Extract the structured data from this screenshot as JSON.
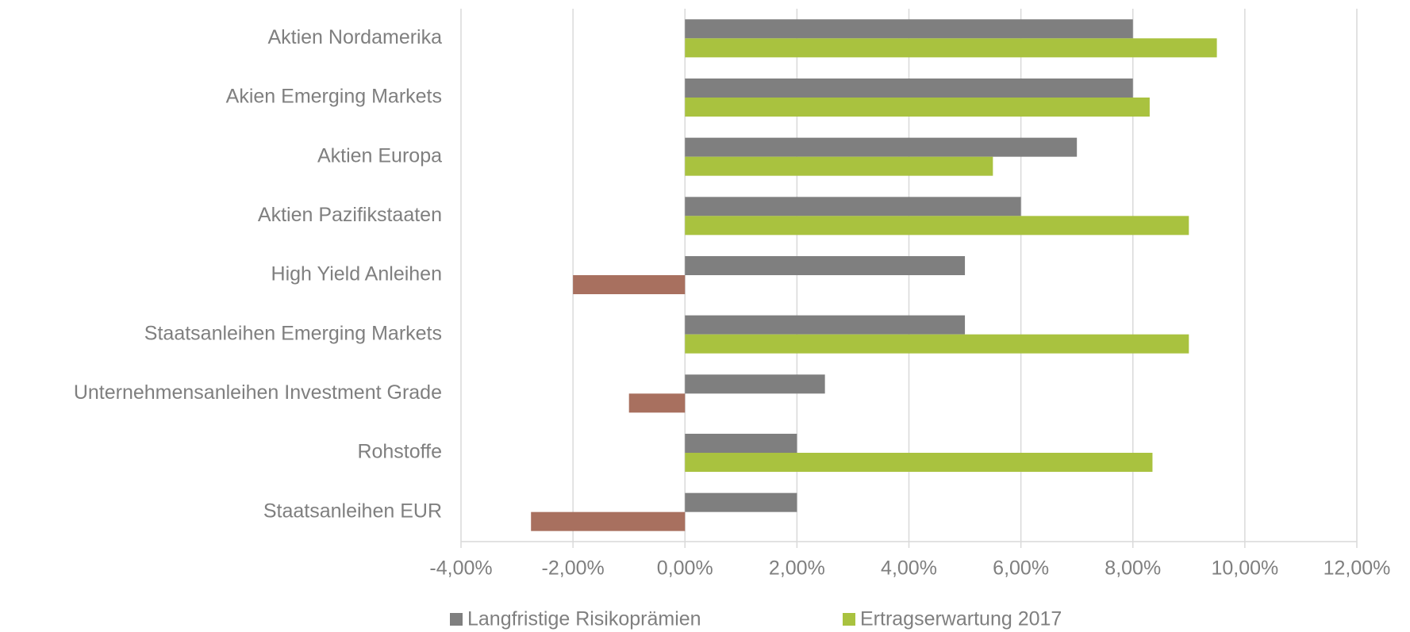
{
  "chart_data": {
    "type": "barh",
    "categories": [
      "Aktien Nordamerika",
      "Akien Emerging Markets",
      "Aktien Europa",
      "Aktien Pazifikstaaten",
      "High Yield Anleihen",
      "Staatsanleihen Emerging Markets",
      "Unternehmensanleihen Investment Grade",
      "Rohstoffe",
      "Staatsanleihen EUR"
    ],
    "series": [
      {
        "name": "Langfristige Risikoprämien",
        "color": "#7f7f7f",
        "values": [
          8,
          8,
          7,
          6,
          5,
          5,
          2.5,
          2,
          2
        ]
      },
      {
        "name": "Ertragserwartung 2017",
        "color": "#a9c23f",
        "negative_color": "#a8705f",
        "values": [
          9.5,
          8.3,
          5.5,
          9,
          -2,
          9,
          -1,
          8.35,
          -2.75
        ]
      }
    ],
    "xlim": [
      -4,
      12
    ],
    "xticks": [
      {
        "value": -4,
        "label": "-4,00%"
      },
      {
        "value": -2,
        "label": "-2,00%"
      },
      {
        "value": 0,
        "label": "0,00%"
      },
      {
        "value": 2,
        "label": "2,00%"
      },
      {
        "value": 4,
        "label": "4,00%"
      },
      {
        "value": 6,
        "label": "6,00%"
      },
      {
        "value": 8,
        "label": "8,00%"
      },
      {
        "value": 10,
        "label": "10,00%"
      },
      {
        "value": 12,
        "label": "12,00%"
      }
    ],
    "grid": true,
    "legend": "bottom"
  }
}
